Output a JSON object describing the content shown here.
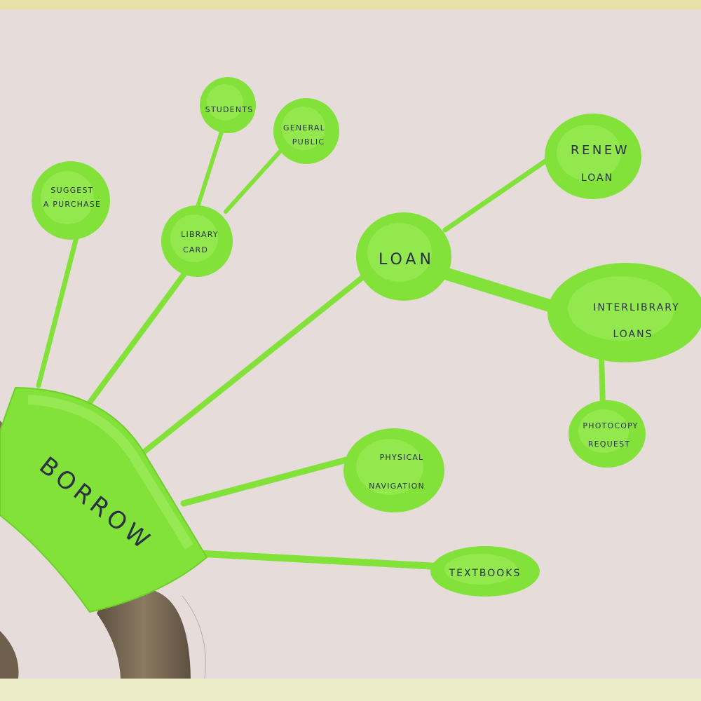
{
  "colors": {
    "paper": "#e6dcd9",
    "marker_green": "#82e23a",
    "marker_green_light": "#a4ee62",
    "trunk": "#7a6a55",
    "ink": "#2a3140",
    "top_strip": "#e8e2a8",
    "bottom_strip": "#ecebc8"
  },
  "root": {
    "label": "BORROW"
  },
  "nodes": {
    "suggest": {
      "line1": "SUGGEST",
      "line2": "A PURCHASE"
    },
    "library_card": {
      "line1": "LIBRARY",
      "line2": "CARD"
    },
    "students": {
      "label": "STUDENTS"
    },
    "general_public": {
      "line1": "GENERAL",
      "line2": "PUBLIC"
    },
    "loan": {
      "label": "LOAN"
    },
    "renew_loan": {
      "line1": "RENEW",
      "line2": "LOAN"
    },
    "interlibrary": {
      "line1": "INTERLIBRARY",
      "line2": "LOANS"
    },
    "photocopy": {
      "line1": "PHOTOCOPY",
      "line2": "REQUEST"
    },
    "physical_navigation": {
      "line1": "PHYSICAL",
      "line2": "NAVIGATION"
    },
    "textbooks": {
      "label": "TEXTBOOKS"
    }
  }
}
